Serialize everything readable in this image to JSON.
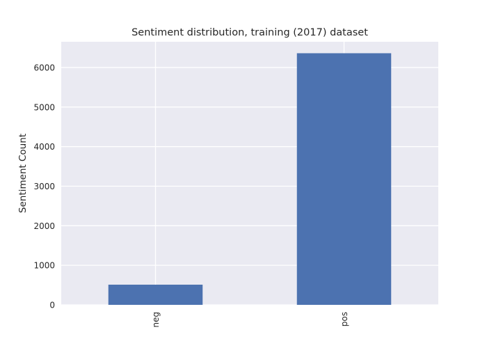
{
  "chart_data": {
    "type": "bar",
    "title": "Sentiment distribution, training (2017) dataset",
    "xlabel": "",
    "ylabel": "Sentiment Count",
    "categories": [
      "neg",
      "pos"
    ],
    "values": [
      510,
      6360
    ],
    "ylim": [
      0,
      6650
    ],
    "yticks": [
      0,
      1000,
      2000,
      3000,
      4000,
      5000,
      6000
    ],
    "ytick_labels": [
      "0",
      "1000",
      "2000",
      "3000",
      "4000",
      "5000",
      "6000"
    ],
    "x_tick_rotation": "vertical",
    "grid": true,
    "legend": "none",
    "style": {
      "plot_background": "#eaeaf2",
      "grid_color": "#ffffff",
      "bar_color": "#4c72b0",
      "text_color": "#262626"
    }
  }
}
